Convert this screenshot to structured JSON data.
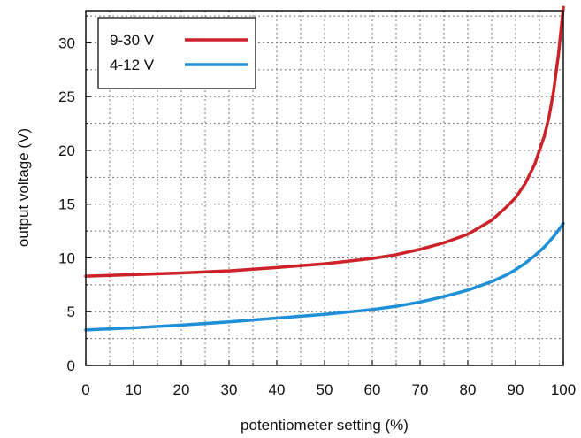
{
  "chart_data": {
    "type": "line",
    "title": "",
    "xlabel": "potentiometer setting (%)",
    "ylabel": "output voltage (V)",
    "xlim": [
      0,
      100
    ],
    "ylim": [
      0,
      33
    ],
    "x_ticks": [
      0,
      10,
      20,
      30,
      40,
      50,
      60,
      70,
      80,
      90,
      100
    ],
    "y_ticks": [
      0,
      5,
      10,
      15,
      20,
      25,
      30
    ],
    "grid": true,
    "legend_position": "top-left",
    "series": [
      {
        "name": "9-30 V",
        "color": "#cc2229",
        "points": [
          [
            0,
            8.3
          ],
          [
            10,
            8.45
          ],
          [
            20,
            8.6
          ],
          [
            30,
            8.8
          ],
          [
            40,
            9.1
          ],
          [
            50,
            9.45
          ],
          [
            60,
            9.95
          ],
          [
            65,
            10.3
          ],
          [
            70,
            10.8
          ],
          [
            75,
            11.4
          ],
          [
            80,
            12.2
          ],
          [
            85,
            13.5
          ],
          [
            88,
            14.7
          ],
          [
            90,
            15.6
          ],
          [
            92,
            16.9
          ],
          [
            94,
            18.7
          ],
          [
            96,
            21.3
          ],
          [
            97,
            23.1
          ],
          [
            98,
            25.6
          ],
          [
            99,
            29.0
          ],
          [
            100,
            33.3
          ]
        ]
      },
      {
        "name": "4-12 V",
        "color": "#1f8fd8",
        "points": [
          [
            0,
            3.3
          ],
          [
            10,
            3.5
          ],
          [
            20,
            3.75
          ],
          [
            30,
            4.05
          ],
          [
            40,
            4.4
          ],
          [
            50,
            4.75
          ],
          [
            60,
            5.2
          ],
          [
            65,
            5.5
          ],
          [
            70,
            5.9
          ],
          [
            75,
            6.4
          ],
          [
            80,
            7.0
          ],
          [
            85,
            7.8
          ],
          [
            88,
            8.4
          ],
          [
            90,
            8.9
          ],
          [
            92,
            9.5
          ],
          [
            94,
            10.2
          ],
          [
            96,
            11.0
          ],
          [
            97,
            11.5
          ],
          [
            98,
            12.0
          ],
          [
            99,
            12.6
          ],
          [
            100,
            13.2
          ]
        ]
      }
    ]
  }
}
